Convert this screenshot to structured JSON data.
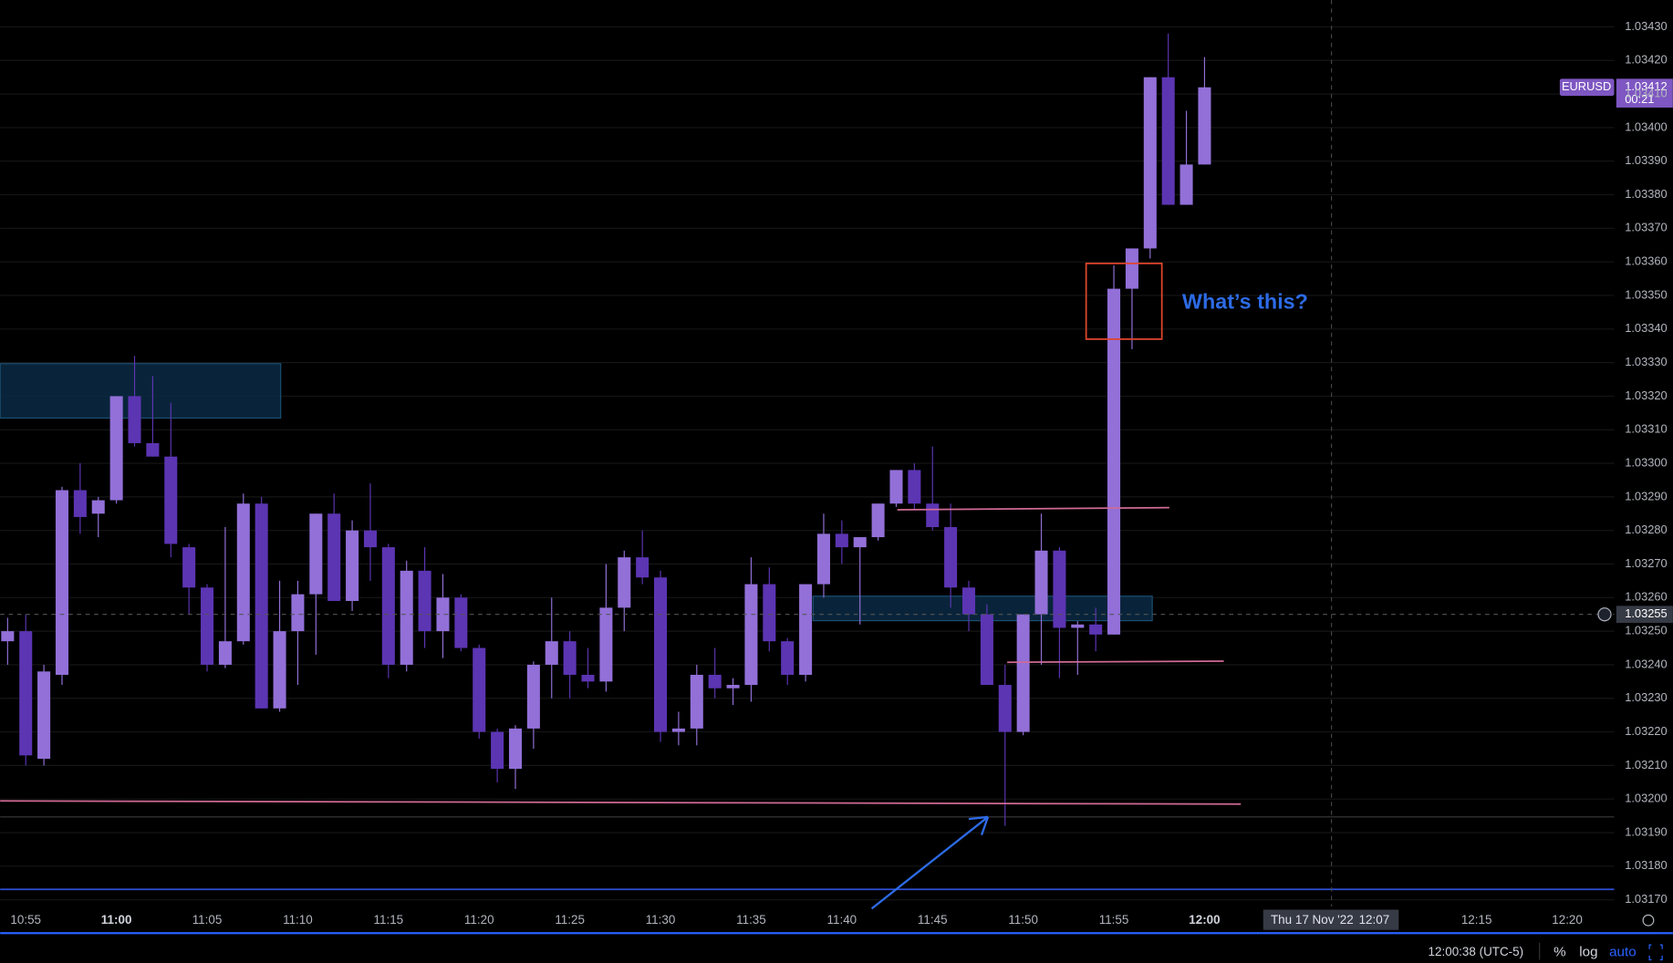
{
  "chart_data": {
    "type": "candlestick",
    "symbol": "EURUSD",
    "x": [
      "10:54",
      "10:55",
      "10:56",
      "10:57",
      "10:58",
      "10:59",
      "11:00",
      "11:01",
      "11:02",
      "11:03",
      "11:04",
      "11:05",
      "11:06",
      "11:07",
      "11:08",
      "11:09",
      "11:10",
      "11:11",
      "11:12",
      "11:13",
      "11:14",
      "11:15",
      "11:16",
      "11:17",
      "11:18",
      "11:19",
      "11:20",
      "11:21",
      "11:22",
      "11:23",
      "11:24",
      "11:25",
      "11:26",
      "11:27",
      "11:28",
      "11:29",
      "11:30",
      "11:31",
      "11:32",
      "11:33",
      "11:34",
      "11:35",
      "11:36",
      "11:37",
      "11:38",
      "11:39",
      "11:40",
      "11:41",
      "11:42",
      "11:43",
      "11:44",
      "11:45",
      "11:46",
      "11:47",
      "11:48",
      "11:49",
      "11:50",
      "11:51",
      "11:52",
      "11:53",
      "11:54",
      "11:55",
      "11:56",
      "11:57",
      "11:58",
      "11:59",
      "12:00"
    ],
    "open": [
      1.03247,
      1.0325,
      1.03212,
      1.03237,
      1.03292,
      1.03285,
      1.03289,
      1.0332,
      1.03306,
      1.03302,
      1.03275,
      1.03263,
      1.0324,
      1.03247,
      1.03288,
      1.03227,
      1.0325,
      1.03261,
      1.03285,
      1.03259,
      1.0328,
      1.03275,
      1.0324,
      1.03268,
      1.0325,
      1.0326,
      1.03245,
      1.0322,
      1.03209,
      1.03221,
      1.0324,
      1.03247,
      1.03237,
      1.03235,
      1.03257,
      1.03272,
      1.03266,
      1.0322,
      1.03221,
      1.03237,
      1.03233,
      1.03234,
      1.03264,
      1.03247,
      1.03237,
      1.03264,
      1.03279,
      1.03275,
      1.03278,
      1.03288,
      1.03298,
      1.03288,
      1.03281,
      1.03263,
      1.03255,
      1.03234,
      1.0322,
      1.03255,
      1.03274,
      1.03251,
      1.03252,
      1.03249,
      1.03352,
      1.03364,
      1.03415,
      1.03377,
      1.03389
    ],
    "high": [
      1.03254,
      1.03255,
      1.0324,
      1.03293,
      1.033,
      1.0329,
      1.0332,
      1.03332,
      1.03326,
      1.03318,
      1.03276,
      1.03264,
      1.03281,
      1.03291,
      1.0329,
      1.03265,
      1.03265,
      1.03285,
      1.03291,
      1.03283,
      1.03294,
      1.03276,
      1.03271,
      1.03275,
      1.03267,
      1.03261,
      1.03246,
      1.03221,
      1.03222,
      1.03241,
      1.0326,
      1.0325,
      1.03245,
      1.0327,
      1.03274,
      1.0328,
      1.03268,
      1.03226,
      1.0324,
      1.03245,
      1.03236,
      1.03272,
      1.03269,
      1.03248,
      1.03264,
      1.03285,
      1.03283,
      1.03278,
      1.03288,
      1.03298,
      1.033,
      1.03305,
      1.03288,
      1.03265,
      1.03258,
      1.0324,
      1.03255,
      1.03285,
      1.03275,
      1.03253,
      1.03257,
      1.03359,
      1.03364,
      1.03415,
      1.03428,
      1.03405,
      1.03421
    ],
    "low": [
      1.0324,
      1.0321,
      1.0321,
      1.03234,
      1.03279,
      1.03278,
      1.03288,
      1.03305,
      1.03302,
      1.03272,
      1.03255,
      1.03238,
      1.03239,
      1.03246,
      1.03227,
      1.03226,
      1.03234,
      1.03243,
      1.03259,
      1.03256,
      1.03265,
      1.03236,
      1.03238,
      1.03245,
      1.03242,
      1.03244,
      1.03218,
      1.03205,
      1.03203,
      1.03215,
      1.0323,
      1.0323,
      1.03233,
      1.03232,
      1.0325,
      1.03264,
      1.03217,
      1.03216,
      1.03216,
      1.0323,
      1.03228,
      1.03229,
      1.03244,
      1.03234,
      1.03235,
      1.0326,
      1.0327,
      1.03252,
      1.03277,
      1.03287,
      1.03286,
      1.0328,
      1.03257,
      1.0325,
      1.03234,
      1.03192,
      1.03219,
      1.0324,
      1.03236,
      1.03237,
      1.03244,
      1.03249,
      1.03334,
      1.03361,
      1.03377,
      1.03377,
      1.03389
    ],
    "close": [
      1.0325,
      1.03213,
      1.03238,
      1.03292,
      1.03284,
      1.03289,
      1.0332,
      1.03306,
      1.03302,
      1.03276,
      1.03263,
      1.0324,
      1.03247,
      1.03288,
      1.03227,
      1.0325,
      1.03261,
      1.03285,
      1.03259,
      1.0328,
      1.03275,
      1.0324,
      1.03268,
      1.0325,
      1.0326,
      1.03245,
      1.0322,
      1.03209,
      1.03221,
      1.0324,
      1.03247,
      1.03237,
      1.03235,
      1.03257,
      1.03272,
      1.03266,
      1.0322,
      1.03221,
      1.03237,
      1.03233,
      1.03234,
      1.03264,
      1.03247,
      1.03237,
      1.03264,
      1.03279,
      1.03275,
      1.03278,
      1.03288,
      1.03298,
      1.03288,
      1.03281,
      1.03263,
      1.03255,
      1.03234,
      1.0322,
      1.03255,
      1.03274,
      1.03251,
      1.03252,
      1.03249,
      1.03352,
      1.03364,
      1.03415,
      1.03377,
      1.03389,
      1.03412
    ],
    "last_price_label": "1.03412",
    "countdown": "00:21",
    "up_color": "#9270d8",
    "down_color": "#5c35b3",
    "grid": true,
    "log_scale": false,
    "ylim": [
      1.03168,
      1.03438
    ],
    "yticks": [
      {
        "value": 1.0317,
        "label": "1.03170"
      },
      {
        "value": 1.0318,
        "label": "1.03180"
      },
      {
        "value": 1.0319,
        "label": "1.03190"
      },
      {
        "value": 1.032,
        "label": "1.03200"
      },
      {
        "value": 1.0321,
        "label": "1.03210"
      },
      {
        "value": 1.0322,
        "label": "1.03220"
      },
      {
        "value": 1.0323,
        "label": "1.03230"
      },
      {
        "value": 1.0324,
        "label": "1.03240"
      },
      {
        "value": 1.0325,
        "label": "1.03250"
      },
      {
        "value": 1.0326,
        "label": "1.03260"
      },
      {
        "value": 1.0327,
        "label": "1.03270"
      },
      {
        "value": 1.0328,
        "label": "1.03280"
      },
      {
        "value": 1.0329,
        "label": "1.03290"
      },
      {
        "value": 1.033,
        "label": "1.03300"
      },
      {
        "value": 1.0331,
        "label": "1.03310"
      },
      {
        "value": 1.0332,
        "label": "1.03320"
      },
      {
        "value": 1.0333,
        "label": "1.03330"
      },
      {
        "value": 1.0334,
        "label": "1.03340"
      },
      {
        "value": 1.0335,
        "label": "1.03350"
      },
      {
        "value": 1.0336,
        "label": "1.03360"
      },
      {
        "value": 1.0337,
        "label": "1.03370"
      },
      {
        "value": 1.0338,
        "label": "1.03380"
      },
      {
        "value": 1.0339,
        "label": "1.03390"
      },
      {
        "value": 1.034,
        "label": "1.03400"
      },
      {
        "value": 1.0341,
        "label": "1.03410"
      },
      {
        "value": 1.0342,
        "label": "1.03420"
      },
      {
        "value": 1.0343,
        "label": "1.03430"
      }
    ],
    "xlim": [
      "10:54",
      "12:22"
    ],
    "xticks": [
      "10:55",
      "11:00",
      "11:05",
      "11:10",
      "11:15",
      "11:20",
      "11:25",
      "11:30",
      "11:35",
      "11:40",
      "11:45",
      "11:50",
      "11:55",
      "12:00",
      "12:15",
      "12:20"
    ],
    "crosshair": {
      "price": {
        "value": 1.03255,
        "label": "1.03255"
      },
      "date": "Thu 17 Nov '22",
      "time": "12:07"
    },
    "annotation": "What’s this?"
  },
  "toolbar": {
    "clock": "12:00:38 (UTC-5)",
    "buttons": [
      "%",
      "log",
      "auto"
    ]
  }
}
